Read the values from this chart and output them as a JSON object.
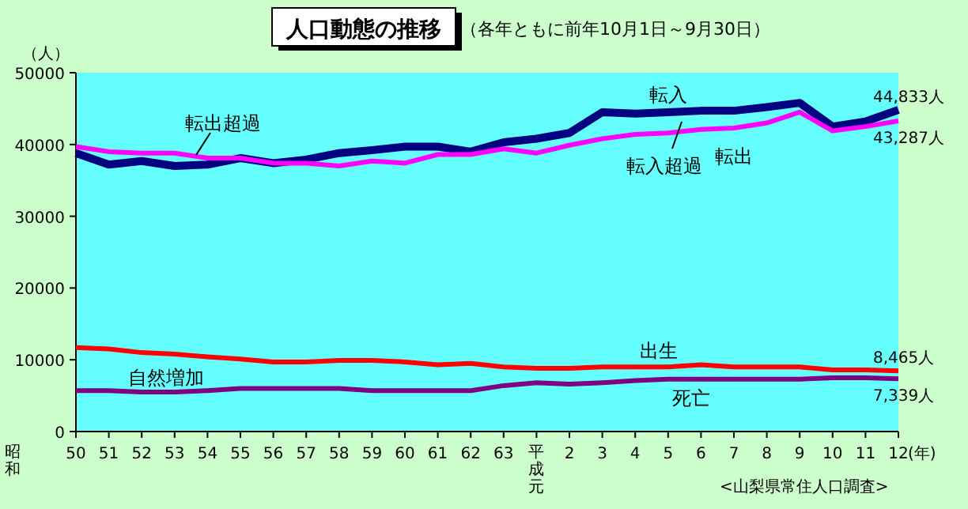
{
  "chart_data": {
    "type": "line",
    "title": "人口動態の推移",
    "subtitle": "（各年ともに前年10月1日～9月30日）",
    "ylabel": "（人）",
    "xlabel": "(年)",
    "categories": [
      "50",
      "51",
      "52",
      "53",
      "54",
      "55",
      "56",
      "57",
      "58",
      "59",
      "60",
      "61",
      "62",
      "63",
      "平成元",
      "2",
      "3",
      "4",
      "5",
      "6",
      "7",
      "8",
      "9",
      "10",
      "11",
      "12"
    ],
    "ylim": [
      0,
      50000
    ],
    "yticks": [
      0,
      10000,
      20000,
      30000,
      40000,
      50000
    ],
    "grid": false,
    "marker": "none",
    "line_style": "solid",
    "series": [
      {
        "name": "転入",
        "color": "#000080",
        "values": [
          38800,
          37200,
          37700,
          37000,
          37200,
          38100,
          37400,
          37900,
          38800,
          39200,
          39700,
          39700,
          39000,
          40300,
          40800,
          41600,
          44500,
          44300,
          44500,
          44700,
          44700,
          45200,
          45800,
          42500,
          43200,
          44833
        ],
        "value_labels": [
          null,
          null,
          null,
          null,
          null,
          null,
          null,
          null,
          null,
          null,
          null,
          null,
          null,
          null,
          null,
          null,
          null,
          null,
          null,
          null,
          null,
          null,
          null,
          null,
          null,
          "44,833人"
        ]
      },
      {
        "name": "転出",
        "color": "#ff00ff",
        "values": [
          39700,
          39000,
          38800,
          38800,
          38100,
          38100,
          37400,
          37400,
          37000,
          37700,
          37400,
          38600,
          38600,
          39400,
          38800,
          39900,
          40800,
          41400,
          41600,
          42100,
          42300,
          43000,
          44500,
          41900,
          42500,
          43287
        ],
        "value_labels": [
          null,
          null,
          null,
          null,
          null,
          null,
          null,
          null,
          null,
          null,
          null,
          null,
          null,
          null,
          null,
          null,
          null,
          null,
          null,
          null,
          null,
          null,
          null,
          null,
          null,
          "43,287人"
        ]
      },
      {
        "name": "出生",
        "color": "#ff0000",
        "values": [
          11700,
          11500,
          11000,
          10800,
          10400,
          10100,
          9700,
          9700,
          9900,
          9900,
          9700,
          9300,
          9500,
          9000,
          8800,
          8800,
          9000,
          9000,
          9000,
          9300,
          9000,
          9000,
          9000,
          8600,
          8600,
          8465
        ],
        "value_labels": [
          null,
          null,
          null,
          null,
          null,
          null,
          null,
          null,
          null,
          null,
          null,
          null,
          null,
          null,
          null,
          null,
          null,
          null,
          null,
          null,
          null,
          null,
          null,
          null,
          null,
          "8,465人"
        ]
      },
      {
        "name": "死亡",
        "color": "#800080",
        "values": [
          5700,
          5700,
          5500,
          5500,
          5700,
          6000,
          6000,
          6000,
          6000,
          5700,
          5700,
          5700,
          5700,
          6400,
          6800,
          6600,
          6800,
          7100,
          7300,
          7300,
          7300,
          7300,
          7300,
          7500,
          7500,
          7339
        ],
        "value_labels": [
          null,
          null,
          null,
          null,
          null,
          null,
          null,
          null,
          null,
          null,
          null,
          null,
          null,
          null,
          null,
          null,
          null,
          null,
          null,
          null,
          null,
          null,
          null,
          null,
          null,
          "7,339人"
        ]
      }
    ],
    "annotations": [
      "昭和",
      "転出超過",
      "転入超過",
      "自然増加",
      "<山梨県常住人口調査>"
    ]
  }
}
